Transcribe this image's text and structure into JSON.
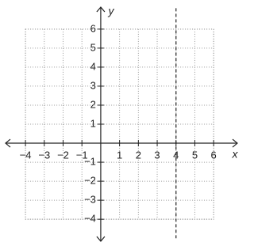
{
  "chart_data": {
    "type": "line",
    "x_label": "x",
    "y_label": "y",
    "x": [
      4,
      4
    ],
    "values": [
      7.1,
      -5.0
    ],
    "color": "#222222",
    "line_style": "dashed",
    "xlim": [
      -5.1,
      7.3
    ],
    "ylim": [
      -5.2,
      7.2
    ],
    "xticks": [
      {
        "value": -4,
        "label": "−4"
      },
      {
        "value": -3,
        "label": "−3"
      },
      {
        "value": -2,
        "label": "−2"
      },
      {
        "value": -1,
        "label": "−1"
      },
      1,
      2,
      3,
      4,
      5,
      6
    ],
    "yticks": [
      {
        "value": -4,
        "label": "−4"
      },
      {
        "value": -3,
        "label": "−3"
      },
      {
        "value": -2,
        "label": "−2"
      },
      {
        "value": -1,
        "label": "−1"
      },
      1,
      2,
      3,
      4,
      5,
      6
    ],
    "grid": true
  }
}
